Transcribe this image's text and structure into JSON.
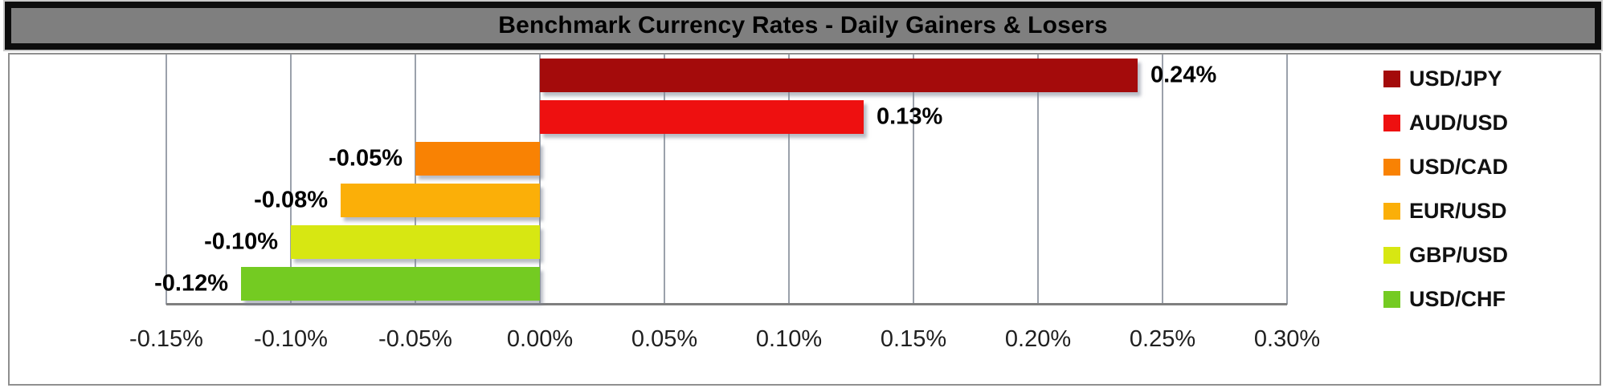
{
  "title_bar": {
    "title": "Benchmark Currency Rates - Daily Gainers & Losers"
  },
  "chart_data": {
    "type": "bar",
    "orientation": "horizontal",
    "title": "Benchmark Currency Rates - Daily Gainers & Losers",
    "xlabel": "",
    "ylabel": "",
    "grid": true,
    "axis": {
      "min": -0.15,
      "max": 0.3,
      "step": 0.05,
      "tick_labels": [
        "-0.15%",
        "-0.10%",
        "-0.05%",
        "0.00%",
        "0.05%",
        "0.10%",
        "0.15%",
        "0.20%",
        "0.25%",
        "0.30%"
      ]
    },
    "series": [
      {
        "name": "USD/JPY",
        "value": 0.24,
        "label": "0.24%",
        "color": "#A40B0B"
      },
      {
        "name": "AUD/USD",
        "value": 0.13,
        "label": "0.13%",
        "color": "#EE1010"
      },
      {
        "name": "USD/CAD",
        "value": -0.05,
        "label": "-0.05%",
        "color": "#F98203"
      },
      {
        "name": "EUR/USD",
        "value": -0.08,
        "label": "-0.08%",
        "color": "#FBAF08"
      },
      {
        "name": "GBP/USD",
        "value": -0.1,
        "label": "-0.10%",
        "color": "#D7E712"
      },
      {
        "name": "USD/CHF",
        "value": -0.12,
        "label": "-0.12%",
        "color": "#74CB22"
      }
    ],
    "legend": {
      "position": "right",
      "entries": [
        "USD/JPY",
        "AUD/USD",
        "USD/CAD",
        "EUR/USD",
        "GBP/USD",
        "USD/CHF"
      ]
    }
  },
  "colors": {
    "title_bar_bg": "#7F7F7F",
    "title_bar_border": "#0D0D0D",
    "chart_border": "#8F8F8F",
    "plot_bg": "#FFFFFF",
    "gridline": "#9BA1AB",
    "axis_line": "#7F7F7F"
  }
}
